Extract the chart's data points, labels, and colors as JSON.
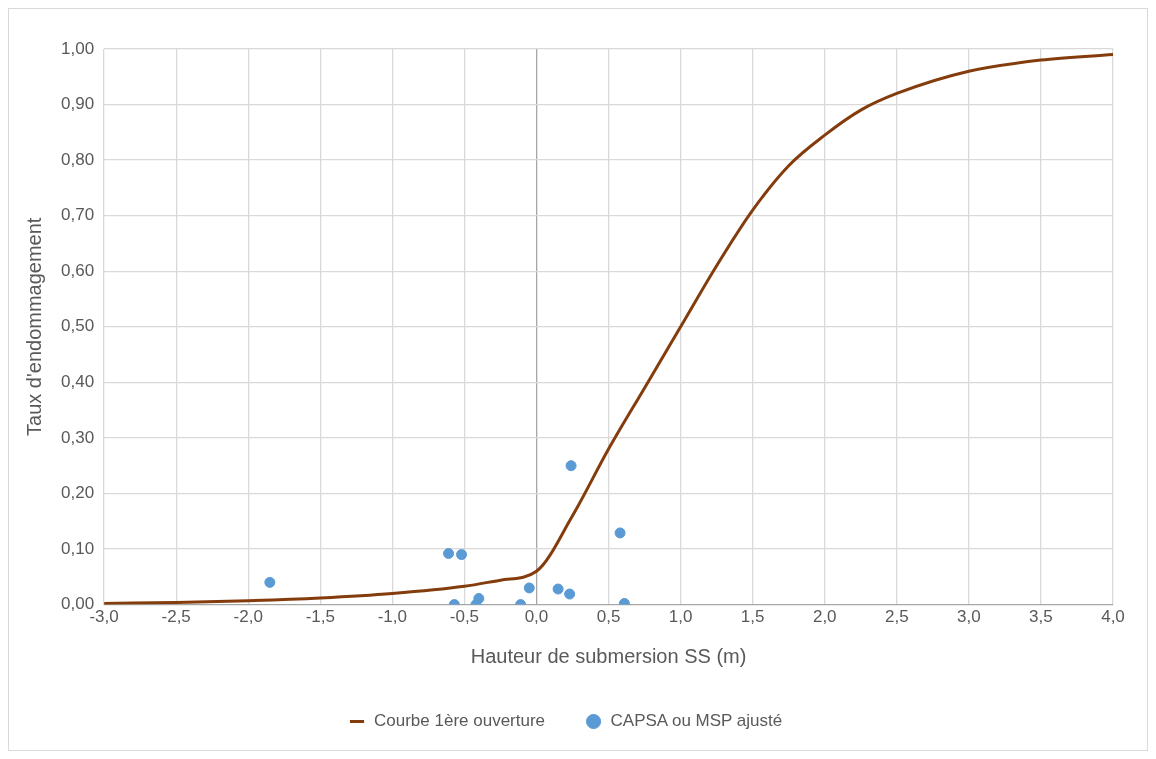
{
  "chart_data": {
    "type": "line",
    "xlabel": "Hauteur de submersion SS (m)",
    "ylabel": "Taux d'endommagement",
    "xlim": [
      -3,
      4
    ],
    "xticks": [
      {
        "value": -3,
        "label": "-3,0"
      },
      {
        "value": -2.5,
        "label": "-2,5"
      },
      {
        "value": -2,
        "label": "-2,0"
      },
      {
        "value": -1.5,
        "label": "-1,5"
      },
      {
        "value": -1,
        "label": "-1,0"
      },
      {
        "value": -0.5,
        "label": "-0,5"
      },
      {
        "value": 0,
        "label": "0,0"
      },
      {
        "value": 0.5,
        "label": "0,5"
      },
      {
        "value": 1,
        "label": "1,0"
      },
      {
        "value": 1.5,
        "label": "1,5"
      },
      {
        "value": 2,
        "label": "2,0"
      },
      {
        "value": 2.5,
        "label": "2,5"
      },
      {
        "value": 3,
        "label": "3,0"
      },
      {
        "value": 3.5,
        "label": "3,5"
      },
      {
        "value": 4,
        "label": "4,0"
      }
    ],
    "ylim": [
      0,
      1
    ],
    "yticks": [
      {
        "value": 0,
        "label": "0,00"
      },
      {
        "value": 0.1,
        "label": "0,10"
      },
      {
        "value": 0.2,
        "label": "0,20"
      },
      {
        "value": 0.3,
        "label": "0,30"
      },
      {
        "value": 0.4,
        "label": "0,40"
      },
      {
        "value": 0.5,
        "label": "0,50"
      },
      {
        "value": 0.6,
        "label": "0,60"
      },
      {
        "value": 0.7,
        "label": "0,70"
      },
      {
        "value": 0.8,
        "label": "0,80"
      },
      {
        "value": 0.9,
        "label": "0,90"
      },
      {
        "value": 1,
        "label": "1,00"
      }
    ],
    "grid": true,
    "legend": "bottom",
    "series": [
      {
        "name": "Courbe 1ère ouverture",
        "type": "line",
        "color": "#843c0c",
        "marker": "none",
        "x": [
          -3,
          -2.5,
          -2,
          -1.5,
          -1,
          -0.5,
          -0.25,
          0,
          0.25,
          0.5,
          0.75,
          1,
          1.25,
          1.5,
          1.75,
          2,
          2.25,
          2.5,
          3,
          3.5,
          4
        ],
        "values": [
          0.002,
          0.004,
          0.007,
          0.012,
          0.02,
          0.033,
          0.044,
          0.06,
          0.16,
          0.28,
          0.39,
          0.5,
          0.61,
          0.71,
          0.79,
          0.845,
          0.89,
          0.92,
          0.96,
          0.98,
          0.99
        ]
      },
      {
        "name": "CAPSA ou MSP ajusté",
        "type": "scatter",
        "color": "#5b9bd5",
        "marker": "circle",
        "x": [
          -1.85,
          -0.61,
          -0.52,
          -0.57,
          -0.42,
          -0.4,
          -0.11,
          -0.05,
          0.15,
          0.23,
          0.24,
          0.58,
          0.61
        ],
        "values": [
          0.04,
          0.092,
          0.09,
          0,
          0,
          0.011,
          0,
          0.03,
          0.028,
          0.019,
          0.25,
          0.129,
          0.002
        ]
      }
    ]
  }
}
